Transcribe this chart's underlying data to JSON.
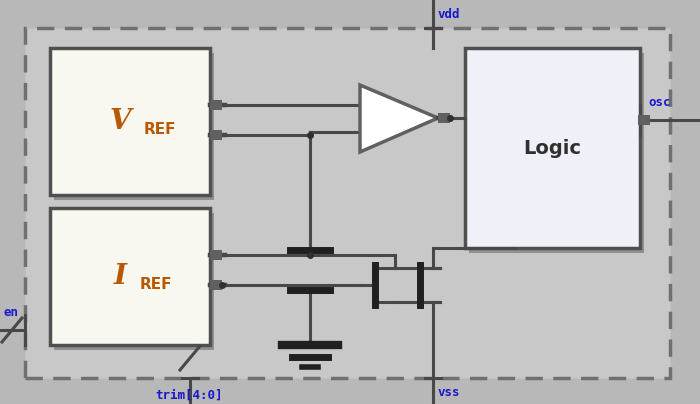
{
  "fig_width": 7.0,
  "fig_height": 4.04,
  "dpi": 100,
  "bg_color": "#b8b8b8",
  "outer_fill": "#c8c8c8",
  "outer_border_color": "#707070",
  "box_face_color": "#f8f8f0",
  "box_edge_color": "#505050",
  "logic_face_color": "#f0f0f8",
  "wire_color": "#484848",
  "wire_lw": 2.2,
  "thick_lw": 3.5,
  "label_blue": "#1818cc",
  "label_orange": "#b85800",
  "shadow_color": "#909090",
  "vdd_label": "vdd",
  "vss_label": "vss",
  "en_label": "en",
  "osc_label": "osc",
  "trim_label": "trim[4:0]",
  "logic_label": "Logic"
}
